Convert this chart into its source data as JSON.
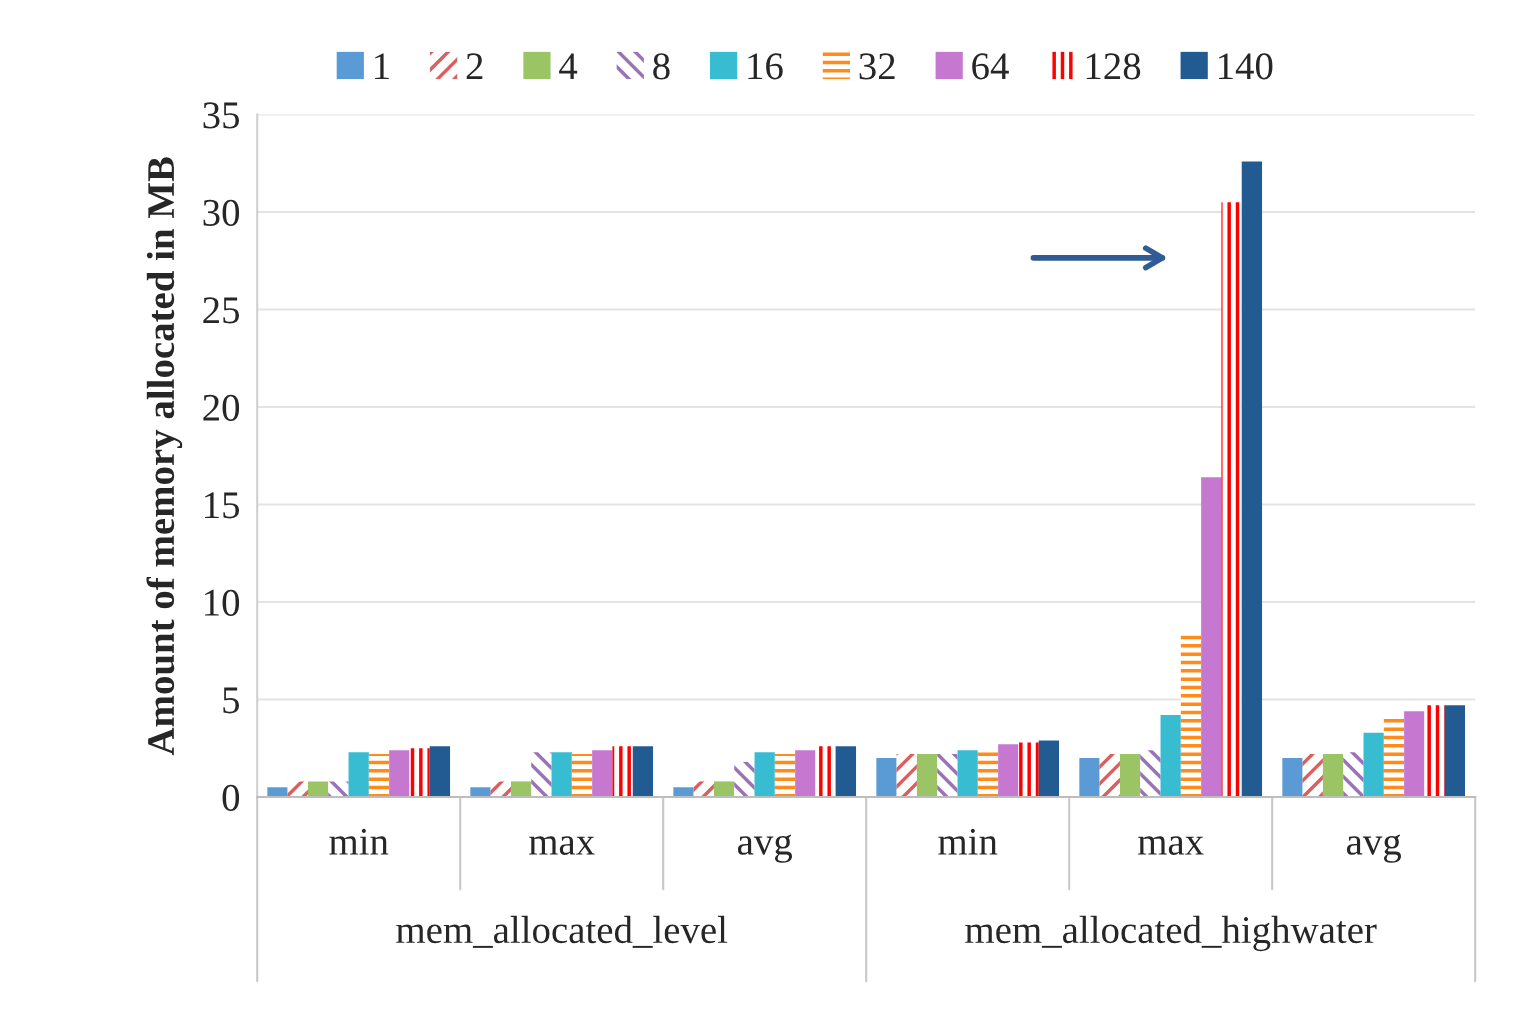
{
  "chart_data": {
    "type": "bar",
    "ylabel": "Amount of memory allocated in MB",
    "categories": [
      "min",
      "max",
      "avg",
      "min",
      "max",
      "avg"
    ],
    "annotations": [
      "mem_allocated_level",
      "mem_allocated_highwater"
    ],
    "series": [
      {
        "name": "1",
        "color": "#5b9bd5",
        "values": [
          0.5,
          0.5,
          0.5,
          2.0,
          2.0,
          2.0
        ]
      },
      {
        "name": "2",
        "color": "#d9605e",
        "values": [
          0.8,
          0.8,
          0.8,
          2.2,
          2.2,
          2.2
        ]
      },
      {
        "name": "4",
        "color": "#9bc465",
        "values": [
          0.8,
          0.8,
          0.8,
          2.2,
          2.2,
          2.2
        ]
      },
      {
        "name": "8",
        "color": "#9a72b8",
        "values": [
          0.8,
          2.3,
          1.8,
          2.2,
          2.4,
          2.3
        ]
      },
      {
        "name": "16",
        "color": "#37bcd2",
        "values": [
          2.3,
          2.3,
          2.3,
          2.4,
          4.2,
          3.3
        ]
      },
      {
        "name": "32",
        "color": "#ff8c1a",
        "values": [
          2.2,
          2.2,
          2.2,
          2.5,
          8.3,
          4.0
        ]
      },
      {
        "name": "64",
        "color": "#c678d0",
        "values": [
          2.4,
          2.4,
          2.4,
          2.7,
          16.4,
          4.4
        ]
      },
      {
        "name": "128",
        "color": "#ff0000",
        "values": [
          2.5,
          2.6,
          2.6,
          2.8,
          30.5,
          4.7
        ]
      },
      {
        "name": "140",
        "color": "#215b92",
        "values": [
          2.6,
          2.6,
          2.6,
          2.9,
          32.6,
          4.7
        ]
      }
    ],
    "ylim": [
      0,
      35
    ],
    "yticks": [
      0,
      5,
      10,
      15,
      20,
      25,
      30,
      35
    ],
    "grid": "y",
    "legend": "top"
  }
}
